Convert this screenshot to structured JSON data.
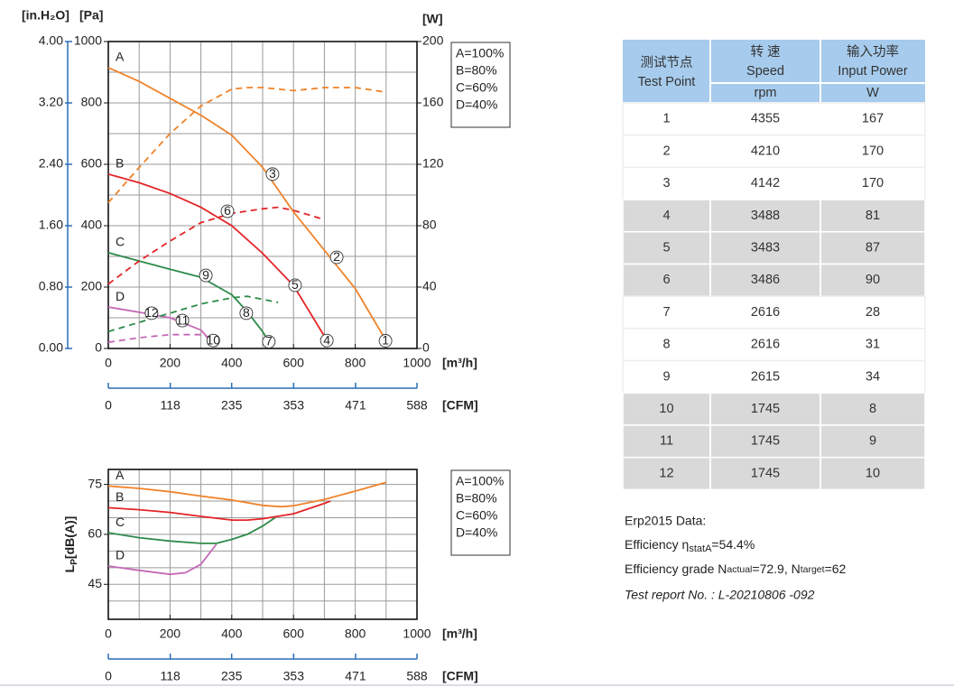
{
  "chart_data": [
    {
      "type": "line",
      "xlabel": "[m³/h]",
      "x2label": "[CFM]",
      "ylabel": "[Pa]",
      "y_alt_label": "[in.H₂O]",
      "y2label": "[W]",
      "xlim": [
        0,
        1000
      ],
      "xticks": [
        0,
        200,
        400,
        600,
        800,
        1000
      ],
      "x2lim": [
        0,
        588
      ],
      "x2ticks": [
        0,
        118,
        235,
        353,
        471,
        588
      ],
      "ylim": [
        0,
        1000
      ],
      "yticks": [
        0,
        200,
        400,
        600,
        800,
        1000
      ],
      "y_alt_lim": [
        0,
        4
      ],
      "y_alt_ticks": [
        {
          "value": 0,
          "label": "0.00"
        },
        {
          "value": 0.8,
          "label": "0.80"
        },
        {
          "value": 1.6,
          "label": "1.60"
        },
        {
          "value": 2.4,
          "label": "2.40"
        },
        {
          "value": 3.2,
          "label": "3.20"
        },
        {
          "value": 4,
          "label": "4.00"
        }
      ],
      "y2lim": [
        0,
        200
      ],
      "y2ticks": [
        0,
        40,
        80,
        120,
        160,
        200
      ],
      "xgrid": [
        100,
        200,
        300,
        400,
        500,
        600,
        700,
        800,
        900
      ],
      "ygrid": [
        100,
        200,
        300,
        400,
        500,
        600,
        700,
        800,
        900
      ],
      "series": [
        {
          "name": "A=100%",
          "curve_label": "A",
          "color": "#f0832a",
          "x": [
            0,
            100,
            200,
            300,
            400,
            500,
            600,
            700,
            800,
            900
          ],
          "values": [
            915,
            870,
            815,
            760,
            695,
            590,
            445,
            320,
            195,
            25
          ]
        },
        {
          "name": "B=80%",
          "curve_label": "B",
          "color": "#e42528",
          "x": [
            0,
            100,
            200,
            300,
            400,
            500,
            600,
            700
          ],
          "values": [
            568,
            540,
            505,
            460,
            400,
            310,
            205,
            40
          ]
        },
        {
          "name": "C=60%",
          "curve_label": "C",
          "color": "#2e8b4a",
          "x": [
            0,
            100,
            200,
            300,
            400,
            450,
            500,
            520
          ],
          "values": [
            312,
            285,
            258,
            232,
            175,
            120,
            55,
            22
          ]
        },
        {
          "name": "D=40%",
          "curve_label": "D",
          "color": "#c468b6",
          "x": [
            0,
            100,
            200,
            300,
            350
          ],
          "values": [
            135,
            118,
            100,
            60,
            5
          ]
        },
        {
          "color": "#f0832a",
          "axis": "y2",
          "dashed": true,
          "x": [
            0,
            100,
            200,
            300,
            400,
            450,
            500,
            600,
            700,
            800,
            900
          ],
          "values": [
            95,
            118,
            140,
            158,
            169,
            170,
            170,
            168,
            170,
            170,
            167
          ]
        },
        {
          "color": "#e42528",
          "axis": "y2",
          "dashed": true,
          "x": [
            0,
            100,
            200,
            300,
            400,
            500,
            550,
            600,
            700
          ],
          "values": [
            42,
            57,
            70,
            82,
            88,
            91,
            92,
            90,
            84
          ]
        },
        {
          "color": "#2e8b4a",
          "axis": "y2",
          "dashed": true,
          "x": [
            0,
            100,
            200,
            300,
            400,
            450,
            500,
            550
          ],
          "values": [
            11,
            17,
            23,
            29,
            33,
            34,
            32,
            30
          ]
        },
        {
          "color": "#c468b6",
          "axis": "y2",
          "dashed": true,
          "x": [
            0,
            100,
            200,
            300,
            350
          ],
          "values": [
            4,
            7,
            9,
            9,
            6
          ]
        }
      ],
      "test_points": {
        "labels": [
          "1",
          "2",
          "3",
          "4",
          "5",
          "6",
          "7",
          "8",
          "9",
          "10",
          "11",
          "12"
        ],
        "x": [
          898,
          740,
          532,
          708,
          605,
          386,
          520,
          447,
          316,
          340,
          240,
          140
        ],
        "y": [
          25,
          297,
          568,
          26,
          206,
          447,
          22,
          115,
          238,
          26,
          91,
          115
        ]
      }
    },
    {
      "type": "line",
      "xlabel": "[m³/h]",
      "x2label": "[CFM]",
      "ylabel": {
        "main": "L",
        "sub": "P",
        "rest": "[dB(A)]"
      },
      "xlim": [
        0,
        1000
      ],
      "xticks": [
        0,
        200,
        400,
        600,
        800,
        1000
      ],
      "x2lim": [
        0,
        588
      ],
      "x2ticks": [
        0,
        118,
        235,
        353,
        471,
        588
      ],
      "ylim": [
        34.5,
        79.5
      ],
      "yticks": [
        45,
        60,
        75
      ],
      "xgrid": [
        100,
        200,
        300,
        400,
        500,
        600,
        700,
        800,
        900
      ],
      "ygrid": [
        40,
        45,
        50,
        55,
        60,
        65,
        70,
        75
      ],
      "series": [
        {
          "name": "A=100%",
          "curve_label": "A",
          "color": "#f0832a",
          "x": [
            0,
            100,
            200,
            300,
            400,
            500,
            560,
            600,
            700,
            800,
            900
          ],
          "values": [
            74.5,
            73.8,
            72.8,
            71.5,
            70.3,
            68.7,
            68.3,
            68.6,
            70.5,
            73,
            75.6
          ]
        },
        {
          "name": "B=80%",
          "curve_label": "B",
          "color": "#e42528",
          "x": [
            0,
            100,
            200,
            300,
            400,
            450,
            500,
            600,
            700,
            720
          ],
          "values": [
            68,
            67.4,
            66.6,
            65.4,
            64.3,
            64.3,
            64.7,
            66.2,
            69.3,
            70
          ]
        },
        {
          "name": "C=60%",
          "curve_label": "C",
          "color": "#2e8b4a",
          "x": [
            0,
            100,
            200,
            300,
            350,
            400,
            450,
            500,
            540
          ],
          "values": [
            60.5,
            59,
            58,
            57.3,
            57.3,
            58.5,
            60,
            62.5,
            65
          ]
        },
        {
          "name": "D=40%",
          "curve_label": "D",
          "color": "#c468b6",
          "x": [
            0,
            100,
            200,
            250,
            300,
            350
          ],
          "values": [
            50.5,
            49.2,
            48,
            48.5,
            51,
            57
          ]
        }
      ]
    }
  ],
  "table": {
    "header": {
      "point": [
        "测试节点",
        "Test Point"
      ],
      "speed": [
        "转 速",
        "Speed"
      ],
      "speed_unit": "rpm",
      "power": [
        "输入功率",
        "Input Power"
      ],
      "power_unit": "W"
    },
    "rows": [
      [
        1,
        4355,
        167
      ],
      [
        2,
        4210,
        170
      ],
      [
        3,
        4142,
        170
      ],
      [
        4,
        3488,
        81
      ],
      [
        5,
        3483,
        87
      ],
      [
        6,
        3486,
        90
      ],
      [
        7,
        2616,
        28
      ],
      [
        8,
        2616,
        31
      ],
      [
        9,
        2615,
        34
      ],
      [
        10,
        1745,
        8
      ],
      [
        11,
        1745,
        9
      ],
      [
        12,
        1745,
        10
      ]
    ],
    "shaded_rows": [
      3,
      4,
      5,
      9,
      10,
      11
    ]
  },
  "erp": {
    "title": "Erp2015  Data:",
    "efficiency": [
      "Efficiency η",
      "statA",
      "=54.4%"
    ],
    "grade": [
      "Efficiency grade N",
      "actual",
      "=72.9, N",
      "target",
      "=62"
    ],
    "report": "Test report No. : L-20210806 -092"
  }
}
